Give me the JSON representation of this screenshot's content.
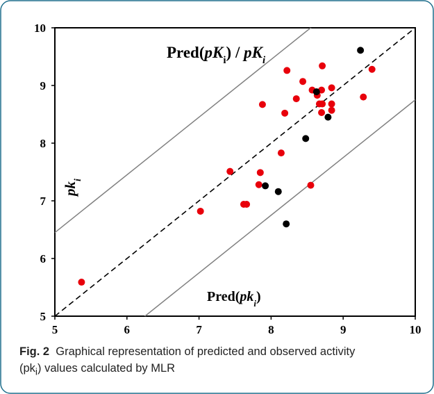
{
  "chart_data": {
    "type": "scatter",
    "title": "",
    "xlabel": "",
    "ylabel": "",
    "xlim": [
      5,
      10
    ],
    "ylim": [
      5,
      10
    ],
    "xticks": [
      "5",
      "6",
      "7",
      "8",
      "9",
      "10"
    ],
    "yticks": [
      "5",
      "6",
      "7",
      "8",
      "9",
      "10"
    ],
    "grid": false,
    "series": [
      {
        "color": "#e8000b",
        "points": [
          [
            5.37,
            5.59
          ],
          [
            7.02,
            6.82
          ],
          [
            7.43,
            7.51
          ],
          [
            7.62,
            6.94
          ],
          [
            7.66,
            6.94
          ],
          [
            7.83,
            7.28
          ],
          [
            7.85,
            7.49
          ],
          [
            7.88,
            8.67
          ],
          [
            8.14,
            7.83
          ],
          [
            8.19,
            8.52
          ],
          [
            8.22,
            9.26
          ],
          [
            8.35,
            8.77
          ],
          [
            8.44,
            9.07
          ],
          [
            8.55,
            7.27
          ],
          [
            8.57,
            8.92
          ],
          [
            8.64,
            8.83
          ],
          [
            8.67,
            8.68
          ],
          [
            8.7,
            8.53
          ],
          [
            8.7,
            8.92
          ],
          [
            8.71,
            9.34
          ],
          [
            8.71,
            8.68
          ],
          [
            8.84,
            8.96
          ],
          [
            8.84,
            8.68
          ],
          [
            8.84,
            8.57
          ],
          [
            9.28,
            8.8
          ],
          [
            9.4,
            9.28
          ]
        ]
      },
      {
        "color": "#000000",
        "points": [
          [
            7.92,
            7.26
          ],
          [
            8.1,
            7.16
          ],
          [
            8.21,
            6.6
          ],
          [
            8.48,
            8.08
          ],
          [
            8.63,
            8.89
          ],
          [
            8.79,
            8.45
          ],
          [
            9.24,
            9.61
          ]
        ]
      }
    ],
    "reference_lines": [
      {
        "kind": "identity",
        "offset": 0,
        "style": "dashed",
        "color": "#000000"
      },
      {
        "kind": "bound",
        "offset": 1.45,
        "style": "solid",
        "color": "#808080"
      },
      {
        "kind": "bound",
        "offset": -1.25,
        "style": "solid",
        "color": "#808080"
      }
    ],
    "annotations": {
      "top": {
        "prefix": "Pred(",
        "var": "pK",
        "sub": "i",
        "suffix": ") / ",
        "var2": "pK",
        "sub2": "i"
      },
      "left": {
        "var": "pk",
        "sub": "i"
      },
      "bottom": {
        "prefix": "Pred(",
        "var": "pk",
        "sub": "i",
        "suffix": ")"
      }
    }
  },
  "caption": {
    "label": "Fig. 2",
    "text_a": "Graphical representation of predicted and observed activity",
    "text_b_prefix": "(pk",
    "text_b_sub": "i",
    "text_b_suffix": ") values calculated by MLR"
  }
}
